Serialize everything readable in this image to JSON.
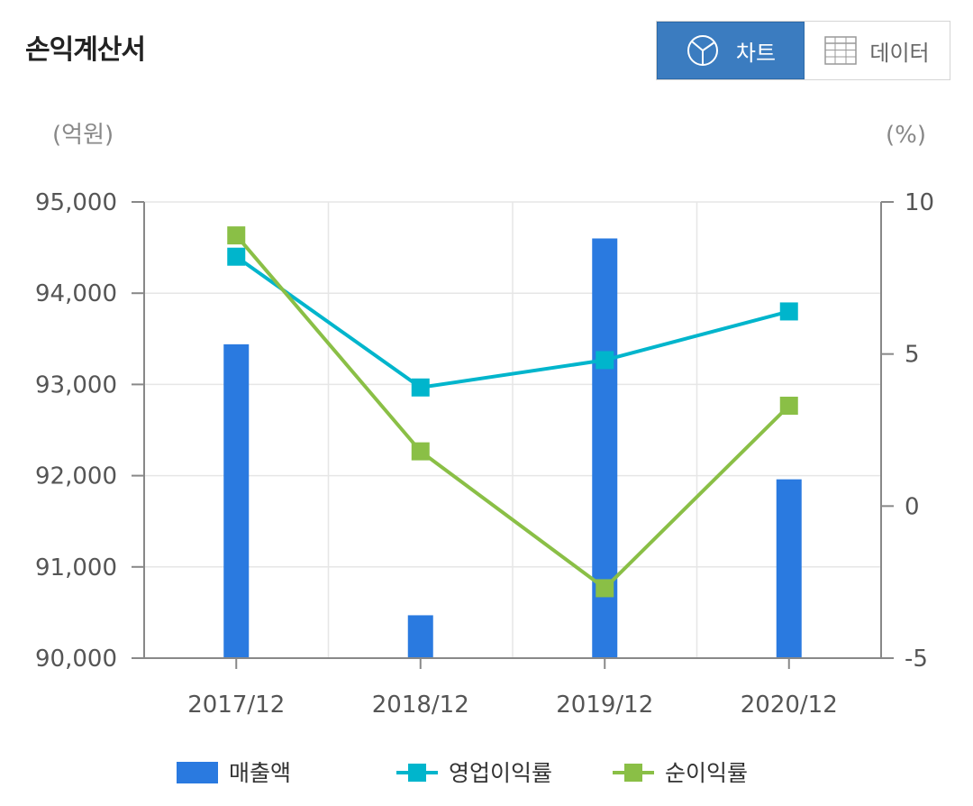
{
  "header": {
    "title": "손익계산서",
    "toggle": {
      "chart_label": "차트",
      "chart_icon": "pie-chart-icon",
      "data_label": "데이터",
      "data_icon": "table-grid-icon",
      "active": "chart"
    }
  },
  "chart_data": {
    "type": "bar",
    "categories": [
      "2017/12",
      "2018/12",
      "2019/12",
      "2020/12"
    ],
    "y_left_unit": "(억원)",
    "y_right_unit": "(%)",
    "y_left_ticks": [
      "90,000",
      "91,000",
      "92,000",
      "93,000",
      "94,000",
      "95,000"
    ],
    "y_right_ticks": [
      "-5",
      "0",
      "5",
      "10"
    ],
    "y_left_lim": [
      90000,
      95000
    ],
    "y_right_lim": [
      -5,
      10
    ],
    "grid": true,
    "legend_position": "bottom",
    "series": [
      {
        "name": "매출액",
        "type": "bar",
        "axis": "left",
        "color": "#2a7ae0",
        "values": [
          93440,
          90470,
          94600,
          91960
        ]
      },
      {
        "name": "영업이익률",
        "type": "line",
        "axis": "right",
        "color": "#00b5cc",
        "values": [
          8.2,
          3.9,
          4.8,
          6.4
        ]
      },
      {
        "name": "순이익률",
        "type": "line",
        "axis": "right",
        "color": "#8abf46",
        "values": [
          8.9,
          1.8,
          -2.7,
          3.3
        ]
      }
    ]
  }
}
